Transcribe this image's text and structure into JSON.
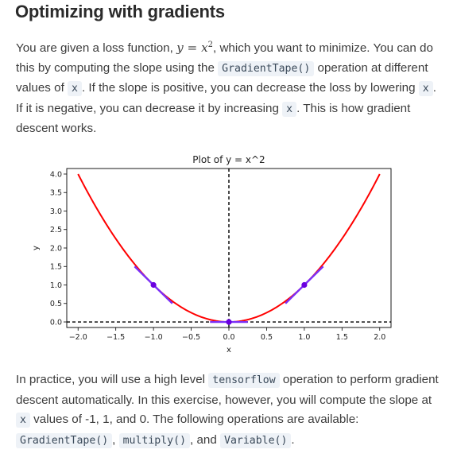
{
  "page": {
    "title": "Optimizing with gradients",
    "p1": {
      "t1": "You are given a loss function, ",
      "math_lhs": "y",
      "math_eq": " = ",
      "math_rhs": "x",
      "math_exp": "2",
      "t2": ", which you want to minimize. You can do this by computing the slope using the ",
      "code1": "GradientTape()",
      "t3": " operation at different values of ",
      "code2": "x",
      "t4": ". If the slope is positive, you can decrease the loss by lowering ",
      "code3": "x",
      "t5": ". If it is negative, you can decrease it by increasing ",
      "code4": "x",
      "t6": ". This is how gradient descent works."
    },
    "p2": {
      "t1": "In practice, you will use a high level ",
      "code1": "tensorflow",
      "t2": " operation to perform gradient descent automatically. In this exercise, however, you will compute the slope at ",
      "code2": "x",
      "t3": " values of -1, 1, and 0. The following operations are available: ",
      "code3": "GradientTape()",
      "t4": ", ",
      "code4": "multiply()",
      "t5": ", and ",
      "code5": "Variable()",
      "t6": "."
    }
  },
  "chart_data": {
    "type": "line",
    "title": "Plot of y = x^2",
    "xlabel": "x",
    "ylabel": "y",
    "xlim": [
      -2.15,
      2.15
    ],
    "ylim": [
      -0.15,
      4.15
    ],
    "xticks": [
      "−2.0",
      "−1.5",
      "−1.0",
      "−0.5",
      "0.0",
      "0.5",
      "1.0",
      "1.5",
      "2.0"
    ],
    "xtick_values": [
      -2.0,
      -1.5,
      -1.0,
      -0.5,
      0.0,
      0.5,
      1.0,
      1.5,
      2.0
    ],
    "yticks": [
      "0.0",
      "0.5",
      "1.0",
      "1.5",
      "2.0",
      "2.5",
      "3.0",
      "3.5",
      "4.0"
    ],
    "ytick_values": [
      0.0,
      0.5,
      1.0,
      1.5,
      2.0,
      2.5,
      3.0,
      3.5,
      4.0
    ],
    "curve": {
      "function": "x^2",
      "x_range": [
        -2,
        2
      ],
      "color": "#ff0000"
    },
    "points": [
      {
        "x": -1,
        "y": 1
      },
      {
        "x": 0,
        "y": 0
      },
      {
        "x": 1,
        "y": 1
      }
    ],
    "tangents": [
      {
        "x": -1,
        "slope": -2,
        "half_width": 0.25
      },
      {
        "x": 0,
        "slope": 0,
        "half_width": 0.25
      },
      {
        "x": 1,
        "slope": 2,
        "half_width": 0.25
      }
    ],
    "point_color": "#6a00e0",
    "tangent_color": "#7b2ff7",
    "reference_line_color": "#000000",
    "grid": false
  }
}
